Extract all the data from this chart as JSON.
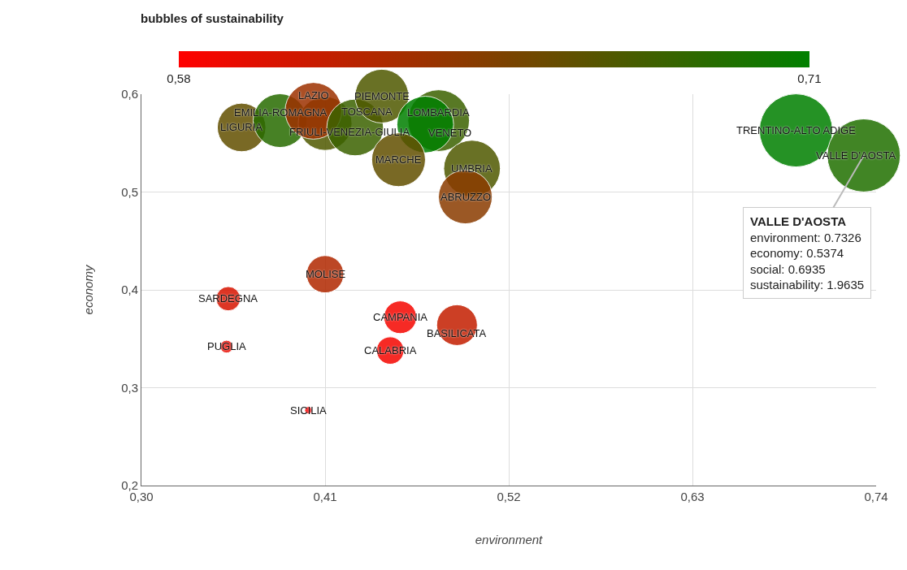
{
  "chart_data": {
    "type": "bubble",
    "title": "bubbles of sustainability",
    "xlabel": "environment",
    "ylabel": "economy",
    "xlim": [
      0.3,
      0.74
    ],
    "xticks": [
      {
        "value": 0.3,
        "label": "0,30"
      },
      {
        "value": 0.41,
        "label": "0,41"
      },
      {
        "value": 0.52,
        "label": "0,52"
      },
      {
        "value": 0.63,
        "label": "0,63"
      },
      {
        "value": 0.74,
        "label": "0,74"
      }
    ],
    "ylim": [
      0.2,
      0.6
    ],
    "yticks": [
      {
        "value": 0.2,
        "label": "0,2"
      },
      {
        "value": 0.3,
        "label": "0,3"
      },
      {
        "value": 0.4,
        "label": "0,4"
      },
      {
        "value": 0.5,
        "label": "0,5"
      },
      {
        "value": 0.6,
        "label": "0,6"
      }
    ],
    "clim": [
      0.58,
      0.71
    ],
    "cticks": [
      {
        "value": 0.58,
        "label": "0,58"
      },
      {
        "value": 0.71,
        "label": "0,71"
      }
    ],
    "grid": true,
    "legend": false,
    "series": [
      {
        "name": "LIGURIA",
        "x": [
          0.36
        ],
        "values": [
          0.566
        ],
        "sizes": [
          0.44
        ],
        "cvalues": [
          0.66
        ]
      },
      {
        "name": "EMILIA-ROMAGNA",
        "x": [
          0.383
        ],
        "values": [
          0.573
        ],
        "sizes": [
          0.54
        ],
        "cvalues": [
          0.69
        ]
      },
      {
        "name": "FRIULI-VENEZIA-GIULIA",
        "x": [
          0.41
        ],
        "values": [
          0.57
        ],
        "sizes": [
          0.54
        ],
        "cvalues": [
          0.67
        ]
      },
      {
        "name": "LAZIO",
        "x": [
          0.403
        ],
        "values": [
          0.583
        ],
        "sizes": [
          0.6
        ],
        "cvalues": [
          0.63
        ]
      },
      {
        "name": "TOSCANA",
        "x": [
          0.428
        ],
        "values": [
          0.566
        ],
        "sizes": [
          0.6
        ],
        "cvalues": [
          0.68
        ]
      },
      {
        "name": "PIEMONTE",
        "x": [
          0.444
        ],
        "values": [
          0.598
        ],
        "sizes": [
          0.54
        ],
        "cvalues": [
          0.67
        ]
      },
      {
        "name": "LOMBARDIA",
        "x": [
          0.478
        ],
        "values": [
          0.573
        ],
        "sizes": [
          0.71
        ],
        "cvalues": [
          0.68
        ]
      },
      {
        "name": "VENETO",
        "x": [
          0.47
        ],
        "values": [
          0.569
        ],
        "sizes": [
          0.6
        ],
        "cvalues": [
          0.71
        ]
      },
      {
        "name": "MARCHE",
        "x": [
          0.454
        ],
        "values": [
          0.533
        ],
        "sizes": [
          0.54
        ],
        "cvalues": [
          0.66
        ]
      },
      {
        "name": "UMBRIA",
        "x": [
          0.498
        ],
        "values": [
          0.524
        ],
        "sizes": [
          0.6
        ],
        "cvalues": [
          0.67
        ]
      },
      {
        "name": "ABRUZZO",
        "x": [
          0.494
        ],
        "values": [
          0.495
        ],
        "sizes": [
          0.54
        ],
        "cvalues": [
          0.64
        ]
      },
      {
        "name": "TRENTINO-ALTO ADIGE",
        "x": [
          0.692
        ],
        "values": [
          0.563
        ],
        "sizes": [
          1
        ],
        "cvalues": [
          0.71
        ]
      },
      {
        "name": "VALLE D'AOSTA",
        "x": [
          0.7326
        ],
        "values": [
          0.5374
        ],
        "sizes": [
          1
        ],
        "cvalues": [
          0.6935
        ]
      },
      {
        "name": "MOLISE",
        "x": [
          0.41
        ],
        "values": [
          0.416
        ],
        "sizes": [
          0.26
        ],
        "cvalues": [
          0.62
        ]
      },
      {
        "name": "SARDEGNA",
        "x": [
          0.352
        ],
        "values": [
          0.391
        ],
        "sizes": [
          0.11
        ],
        "cvalues": [
          0.6
        ]
      },
      {
        "name": "PUGLIA",
        "x": [
          0.351
        ],
        "values": [
          0.342
        ],
        "sizes": [
          0.03
        ],
        "cvalues": [
          0.59
        ]
      },
      {
        "name": "CAMPANIA",
        "x": [
          0.455
        ],
        "values": [
          0.372
        ],
        "sizes": [
          0.2
        ],
        "cvalues": [
          0.585
        ]
      },
      {
        "name": "BASILICATA",
        "x": [
          0.489
        ],
        "values": [
          0.364
        ],
        "sizes": [
          0.31
        ],
        "cvalues": [
          0.61
        ]
      },
      {
        "name": "CALABRIA",
        "x": [
          0.449
        ],
        "values": [
          0.338
        ],
        "sizes": [
          0.14
        ],
        "cvalues": [
          0.585
        ]
      },
      {
        "name": "SICILIA",
        "x": [
          0.4
        ],
        "values": [
          0.277
        ],
        "sizes": [
          0.01
        ],
        "cvalues": [
          0.58
        ]
      }
    ],
    "annotations": [
      {
        "text": "VALLE D'AOSTA\nenvironment: 0.7326\neconomy: 0.5374\nsocial: 0.6935\nsustainability: 1.9635",
        "x": 0.7326,
        "y": 0.5374
      }
    ]
  }
}
